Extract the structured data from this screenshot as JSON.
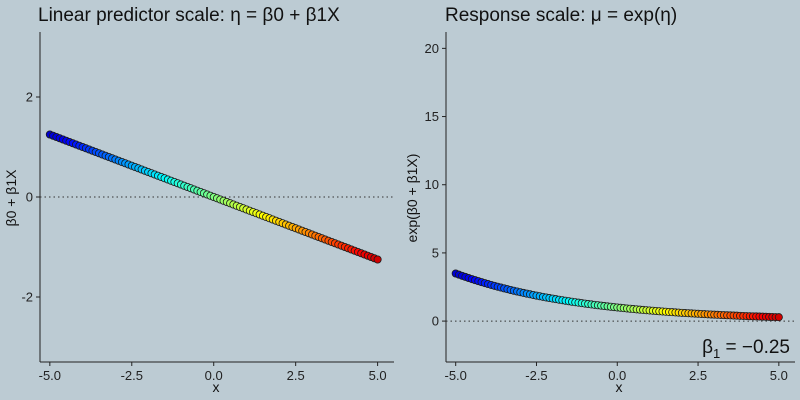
{
  "chart_data": [
    {
      "type": "scatter",
      "title": "Linear predictor scale: η = β0 + β1X",
      "xlabel": "x",
      "ylabel": "β0 + β1X",
      "xlim": [
        -5.3,
        5.5
      ],
      "ylim": [
        -3.3,
        3.3
      ],
      "xticks": [
        "-5.0",
        "-2.5",
        "0.0",
        "2.5",
        "5.0"
      ],
      "xtick_values": [
        -5,
        -2.5,
        0,
        2.5,
        5
      ],
      "yticks": [
        "-2",
        "0",
        "2"
      ],
      "ytick_values": [
        -2,
        0,
        2
      ],
      "reference_line": {
        "y": 0,
        "style": "dotted"
      },
      "grid": false,
      "series": [
        {
          "function": "linear",
          "beta0": 0,
          "beta1": -0.25,
          "x_from": -5,
          "x_to": 5,
          "n_points": 101,
          "color_scale": "rainbow (dark blue → dark red)"
        }
      ]
    },
    {
      "type": "scatter",
      "title": "Response scale: μ = exp(η)",
      "xlabel": "x",
      "ylabel": "exp(β0 + β1X)",
      "xlim": [
        -5.3,
        5.5
      ],
      "ylim": [
        -3,
        21.2
      ],
      "xticks": [
        "-5.0",
        "-2.5",
        "0.0",
        "2.5",
        "5.0"
      ],
      "xtick_values": [
        -5,
        -2.5,
        0,
        2.5,
        5
      ],
      "yticks": [
        "0",
        "5",
        "10",
        "15",
        "20"
      ],
      "ytick_values": [
        0,
        5,
        10,
        15,
        20
      ],
      "reference_line": {
        "y": 0,
        "style": "dotted"
      },
      "grid": false,
      "annotation": {
        "base": "β",
        "subscript": "1",
        "rest": " = −0.25"
      },
      "series": [
        {
          "function": "exp",
          "beta0": 0,
          "beta1": -0.25,
          "x_from": -5,
          "x_to": 5,
          "n_points": 101,
          "color_scale": "rainbow (dark blue → dark red)"
        }
      ]
    }
  ]
}
